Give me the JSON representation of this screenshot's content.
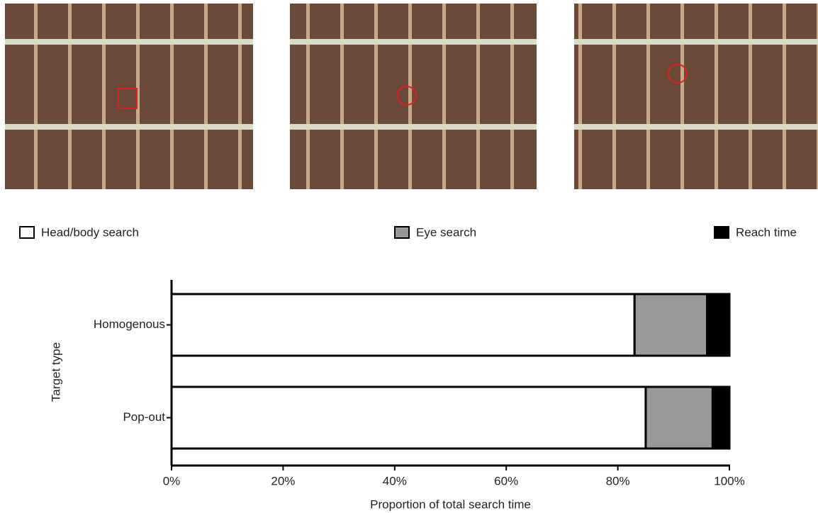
{
  "chart_data": {
    "type": "stacked-barh",
    "categories": [
      "Homogenous",
      "Pop-out"
    ],
    "series": [
      {
        "name": "Head/body search",
        "color": "#ffffff",
        "values": [
          83,
          85
        ]
      },
      {
        "name": "Eye search",
        "color": "#999999",
        "values": [
          13,
          12
        ]
      },
      {
        "name": "Reach time",
        "color": "#000000",
        "values": [
          4,
          3
        ]
      }
    ],
    "xlim": [
      0,
      100
    ],
    "xticks": [
      {
        "value": 0,
        "label": "0%"
      },
      {
        "value": 20,
        "label": "20%"
      },
      {
        "value": 40,
        "label": "40%"
      },
      {
        "value": 60,
        "label": "60%"
      },
      {
        "value": 80,
        "label": "80%"
      },
      {
        "value": 100,
        "label": "100%"
      }
    ],
    "xlabel": "Proportion of total search time",
    "ylabel": "Target type"
  }
}
